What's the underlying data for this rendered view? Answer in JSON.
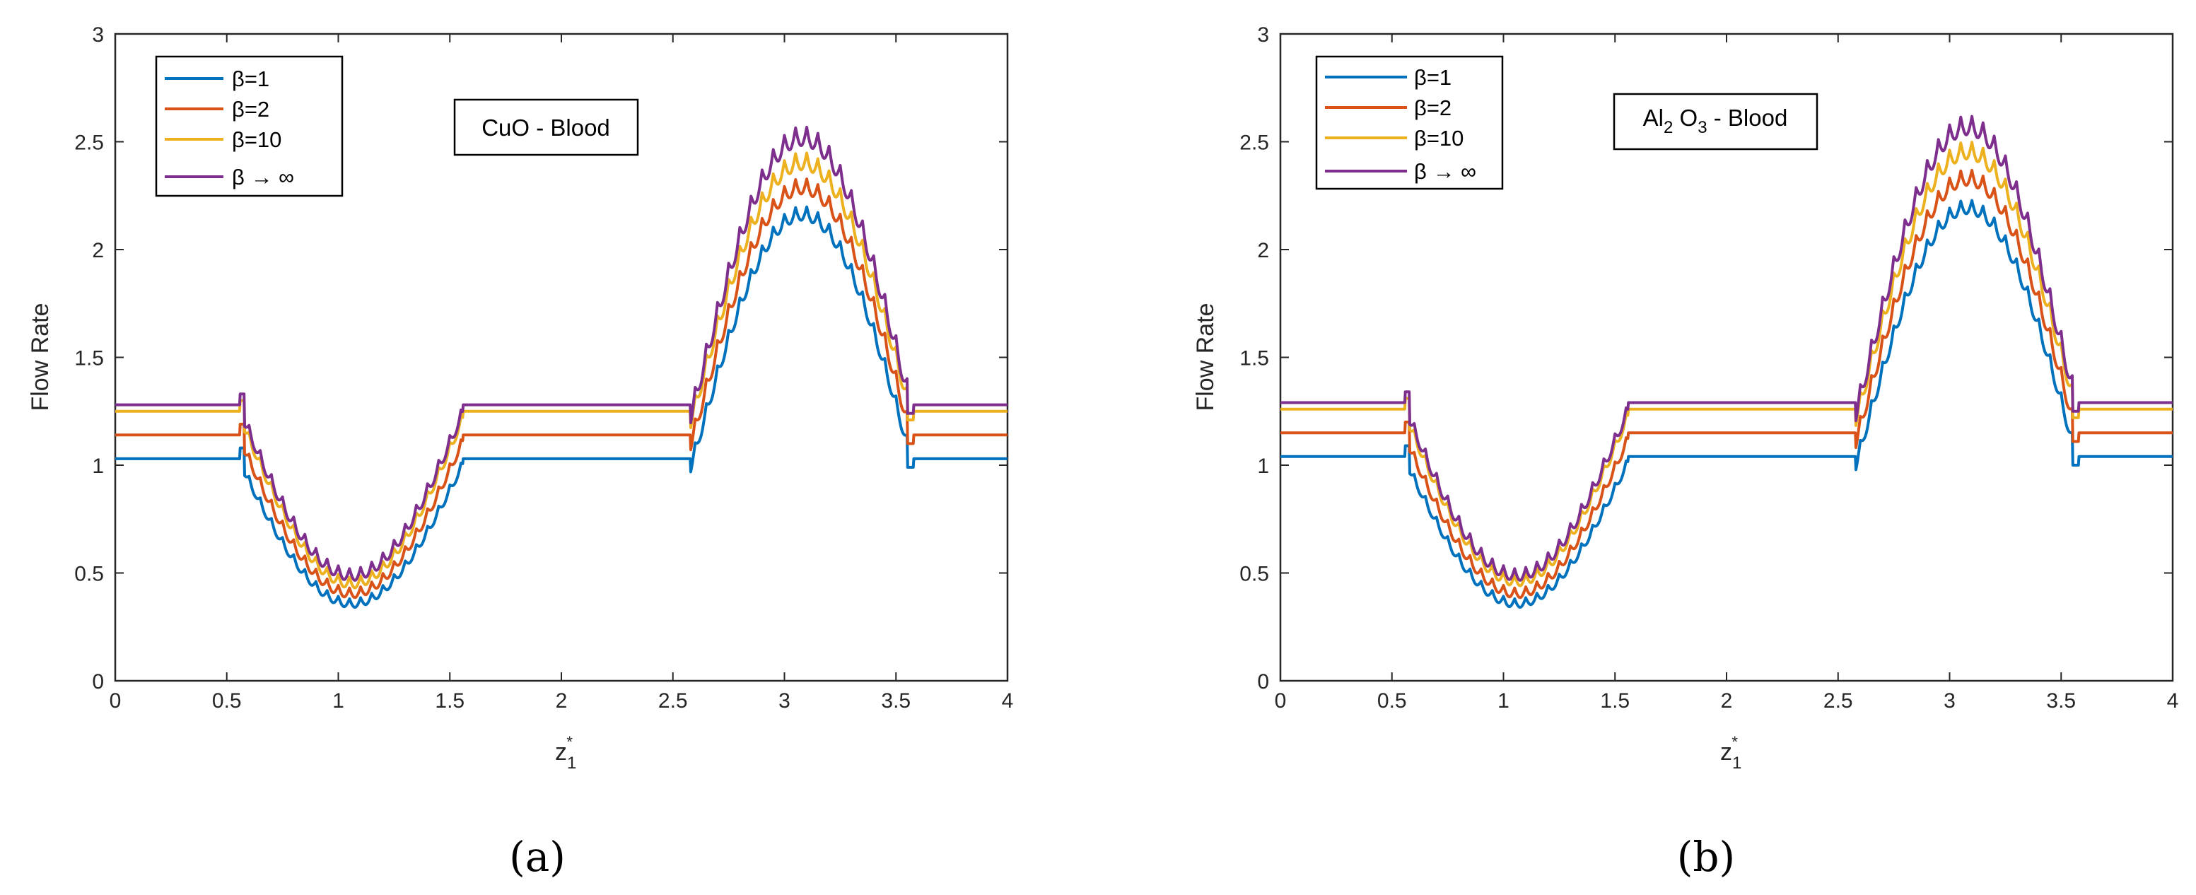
{
  "chart_data": [
    {
      "type": "line",
      "panel_caption": "(a)",
      "annotation": "CuO - Blood",
      "xlabel": "z",
      "xlabel_sub": "1",
      "xlabel_sup": "*",
      "ylabel": "Flow Rate",
      "xlim": [
        0,
        4
      ],
      "ylim": [
        0,
        3
      ],
      "xticks": [
        "0",
        "0.5",
        "1",
        "1.5",
        "2",
        "2.5",
        "3",
        "3.5",
        "4"
      ],
      "yticks": [
        "0",
        "0.5",
        "1",
        "1.5",
        "2",
        "2.5",
        "3"
      ],
      "legend_position": "top-left",
      "series": [
        {
          "name": "β=1",
          "color": "#0072BD",
          "plateau": 1.03,
          "trough": 0.38,
          "peak": 2.2
        },
        {
          "name": "β=2",
          "color": "#D95319",
          "plateau": 1.14,
          "trough": 0.43,
          "peak": 2.33
        },
        {
          "name": "β=10",
          "color": "#EDB120",
          "plateau": 1.25,
          "trough": 0.48,
          "peak": 2.45
        },
        {
          "name": "β → ∞",
          "color": "#7E2F8E",
          "plateau": 1.28,
          "trough": 0.52,
          "peak": 2.57
        }
      ]
    },
    {
      "type": "line",
      "panel_caption": "(b)",
      "annotation": "Al",
      "annotation_sub1": "2",
      "annotation_mid": " O",
      "annotation_sub2": "3",
      "annotation_end": " - Blood",
      "xlabel": "z",
      "xlabel_sub": "1",
      "xlabel_sup": "*",
      "ylabel": "Flow Rate",
      "xlim": [
        0,
        4
      ],
      "ylim": [
        0,
        3
      ],
      "xticks": [
        "0",
        "0.5",
        "1",
        "1.5",
        "2",
        "2.5",
        "3",
        "3.5",
        "4"
      ],
      "yticks": [
        "0",
        "0.5",
        "1",
        "1.5",
        "2",
        "2.5",
        "3"
      ],
      "legend_position": "top-left",
      "series": [
        {
          "name": "β=1",
          "color": "#0072BD",
          "plateau": 1.04,
          "trough": 0.38,
          "peak": 2.23
        },
        {
          "name": "β=2",
          "color": "#D95319",
          "plateau": 1.15,
          "trough": 0.43,
          "peak": 2.37
        },
        {
          "name": "β=10",
          "color": "#EDB120",
          "plateau": 1.26,
          "trough": 0.49,
          "peak": 2.5
        },
        {
          "name": "β → ∞",
          "color": "#7E2F8E",
          "plateau": 1.29,
          "trough": 0.52,
          "peak": 2.62
        }
      ]
    }
  ]
}
